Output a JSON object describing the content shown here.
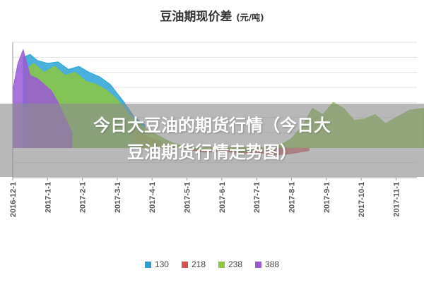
{
  "header": {
    "title": "豆油期现价差",
    "unit": "(元/吨)"
  },
  "banner": {
    "line1": "今日大豆油的期货行情（今日大",
    "line2": "豆油期货行情走势图）"
  },
  "chart_data": {
    "type": "area",
    "title": "豆油期现价差 (元/吨)",
    "x_ticks": [
      "2016-12-1",
      "2017-1-1",
      "2017-2-1",
      "2017-3-1",
      "2017-4-1",
      "2017-5-1",
      "2017-6-1",
      "2017-7-1",
      "2017-8-1",
      "2017-9-1",
      "2017-10-1",
      "2017-11-1"
    ],
    "x_index": [
      0,
      1,
      2,
      3,
      4,
      5,
      6,
      7,
      8,
      9,
      10,
      11
    ],
    "grid": true,
    "legend_position": "bottom",
    "series": [
      {
        "name": "130",
        "color": "#2aa3d6",
        "points": [
          [
            0.3,
            600
          ],
          [
            0.5,
            620
          ],
          [
            0.7,
            580
          ],
          [
            1.0,
            560
          ],
          [
            1.3,
            570
          ],
          [
            1.6,
            520
          ],
          [
            1.9,
            540
          ],
          [
            2.2,
            500
          ],
          [
            2.5,
            470
          ],
          [
            2.8,
            420
          ],
          [
            3.2,
            300
          ],
          [
            3.5,
            200
          ],
          [
            3.8,
            150
          ]
        ]
      },
      {
        "name": "218",
        "color": "#d9534f",
        "points": [
          [
            3.5,
            120
          ],
          [
            4.0,
            60
          ],
          [
            4.5,
            20
          ],
          [
            5.0,
            -10
          ],
          [
            5.5,
            -30
          ],
          [
            6.0,
            -20
          ],
          [
            6.5,
            -40
          ],
          [
            7.0,
            -30
          ],
          [
            7.5,
            -50
          ],
          [
            8.0,
            -40
          ],
          [
            8.5,
            -20
          ]
        ]
      },
      {
        "name": "238",
        "color": "#8cc63f",
        "points": [
          [
            0.4,
            520
          ],
          [
            0.6,
            560
          ],
          [
            0.9,
            500
          ],
          [
            1.2,
            540
          ],
          [
            1.5,
            480
          ],
          [
            1.8,
            500
          ],
          [
            2.1,
            440
          ],
          [
            2.4,
            420
          ],
          [
            2.7,
            380
          ],
          [
            3.0,
            320
          ],
          [
            3.3,
            230
          ],
          [
            3.6,
            160
          ],
          [
            4.0,
            100
          ],
          [
            4.5,
            40
          ],
          [
            5.0,
            0
          ],
          [
            5.5,
            -20
          ],
          [
            6.0,
            -10
          ],
          [
            6.5,
            -30
          ],
          [
            7.0,
            -20
          ],
          [
            7.5,
            -10
          ],
          [
            8.0,
            60
          ],
          [
            8.3,
            140
          ],
          [
            8.6,
            260
          ],
          [
            8.9,
            220
          ],
          [
            9.2,
            300
          ],
          [
            9.5,
            260
          ],
          [
            9.8,
            180
          ],
          [
            10.1,
            190
          ],
          [
            10.4,
            220
          ],
          [
            10.7,
            160
          ],
          [
            11.0,
            200
          ],
          [
            11.4,
            250
          ],
          [
            11.8,
            260
          ]
        ]
      },
      {
        "name": "388",
        "color": "#9b59d6",
        "points": [
          [
            0.0,
            380
          ],
          [
            0.15,
            560
          ],
          [
            0.3,
            650
          ],
          [
            0.5,
            480
          ],
          [
            0.7,
            460
          ],
          [
            0.9,
            420
          ],
          [
            1.1,
            380
          ],
          [
            1.3,
            300
          ],
          [
            1.5,
            200
          ],
          [
            1.7,
            100
          ]
        ]
      }
    ]
  }
}
